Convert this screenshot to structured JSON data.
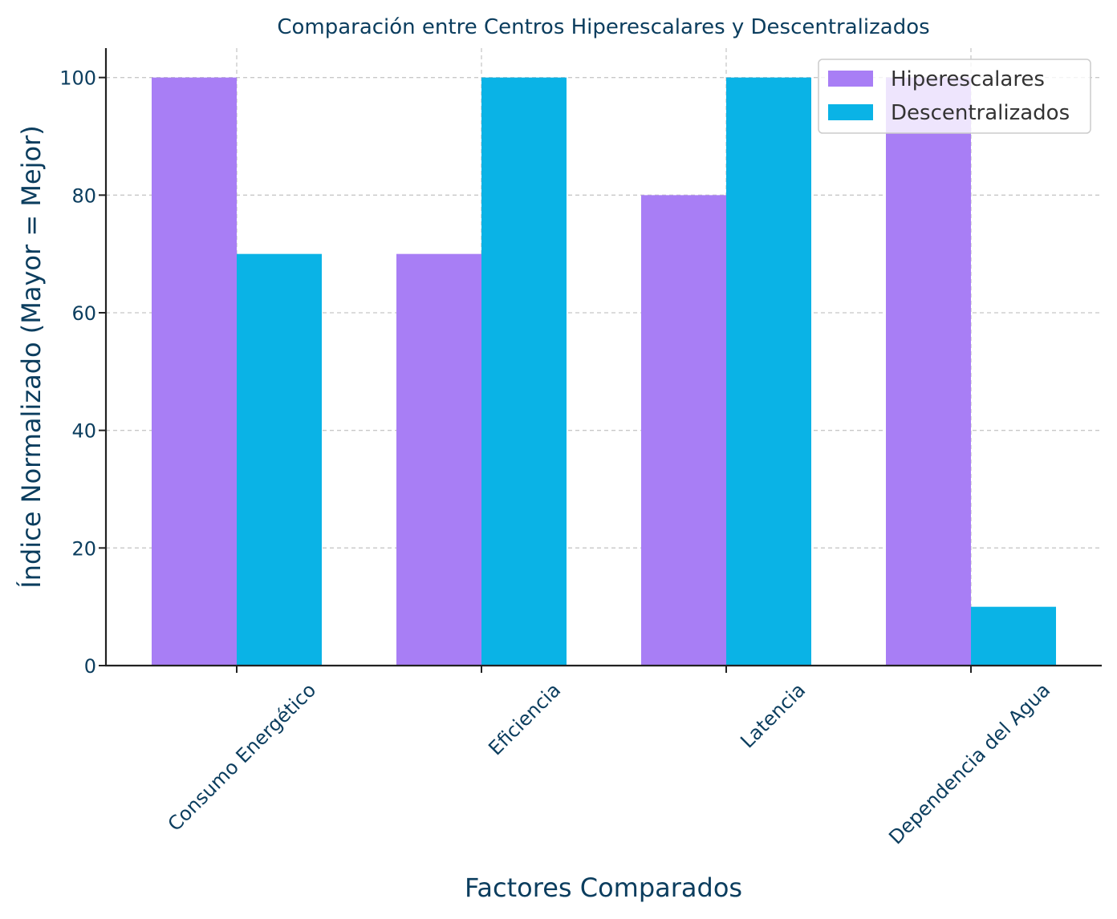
{
  "chart_data": {
    "type": "bar",
    "title": "Comparación entre Centros Hiperescalares y Descentralizados",
    "xlabel": "Factores Comparados",
    "ylabel": "Índice Normalizado (Mayor = Mejor)",
    "categories": [
      "Consumo Energético",
      "Eficiencia",
      "Latencia",
      "Dependencia del Agua"
    ],
    "series": [
      {
        "name": "Hiperescalares",
        "values": [
          100,
          70,
          80,
          100
        ],
        "color": "#a87ef5"
      },
      {
        "name": "Descentralizados",
        "values": [
          70,
          100,
          100,
          10
        ],
        "color": "#0ab3e6"
      }
    ],
    "ylim": [
      0,
      105
    ],
    "yticks": [
      0,
      20,
      40,
      60,
      80,
      100
    ],
    "grid": true,
    "grid_style": "dashed",
    "legend_position": "upper right",
    "axis_color": "#222222",
    "text_color": "#0b3d5e",
    "grid_color": "#c8c8c8"
  }
}
